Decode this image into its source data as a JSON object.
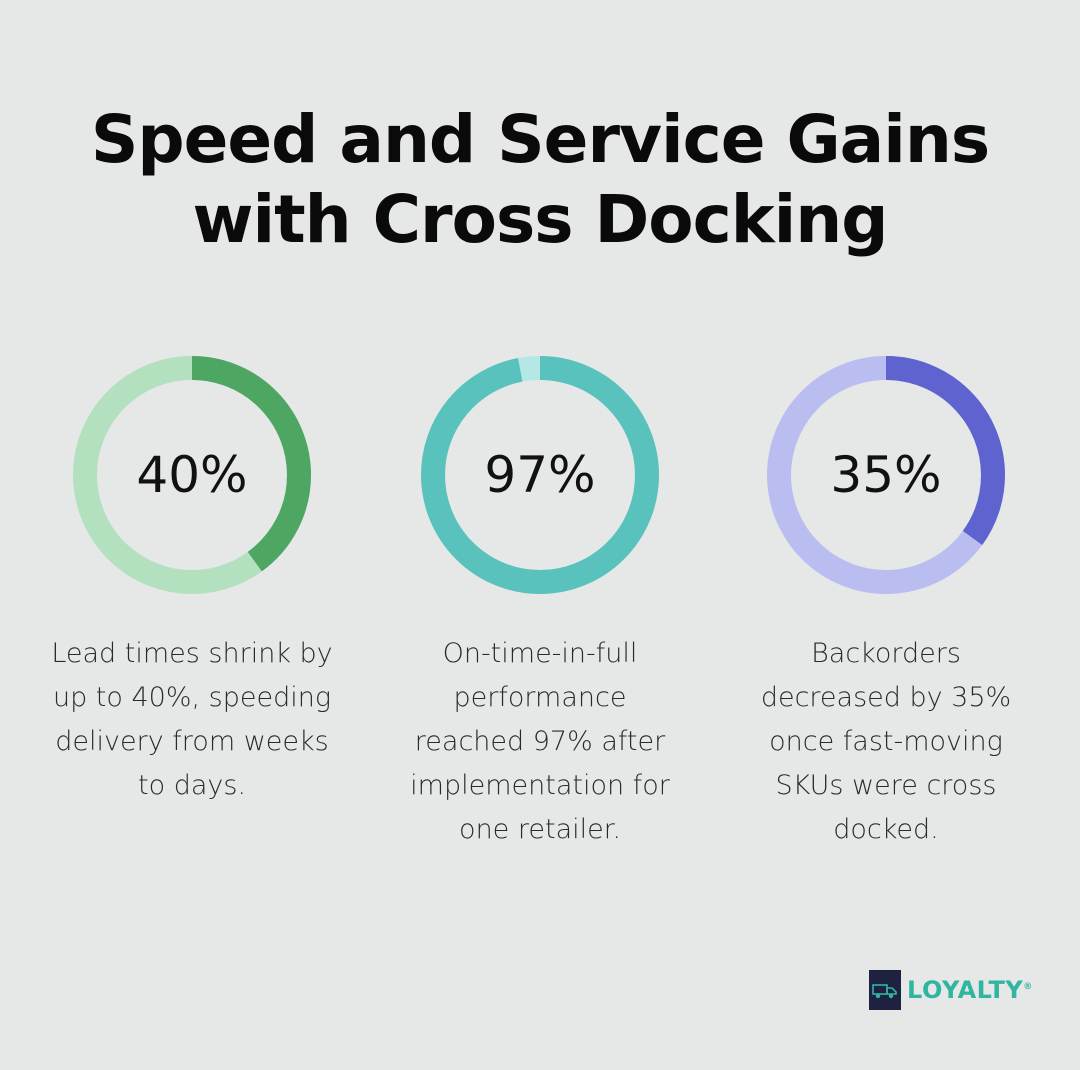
{
  "title": {
    "line1": "Speed and Service Gains",
    "line2": "with Cross Docking"
  },
  "chart_data": [
    {
      "type": "donut",
      "value": 40,
      "label": "40%",
      "description": "Lead times shrink by up to 40%, speeding delivery from weeks to days.",
      "desc_lines": [
        "Lead times shrink by",
        "up to 40%, speeding",
        "delivery from weeks",
        "to days."
      ],
      "colors": {
        "fill": "#4da662",
        "track": "#b3e1c0"
      }
    },
    {
      "type": "donut",
      "value": 97,
      "label": "97%",
      "description": "On-time-in-full performance reached 97% after implementation for one retailer.",
      "desc_lines": [
        "On-time-in-full",
        "performance",
        "reached 97% after",
        "implementation for",
        "one retailer."
      ],
      "colors": {
        "fill": "#5ac2bd",
        "track": "#b5e8e4"
      }
    },
    {
      "type": "donut",
      "value": 35,
      "label": "35%",
      "description": "Backorders decreased by 35% once fast-moving SKUs were cross docked.",
      "desc_lines": [
        "Backorders",
        "decreased by 35%",
        "once fast-moving",
        "SKUs were cross",
        "docked."
      ],
      "colors": {
        "fill": "#5e63cf",
        "track": "#babdf0"
      }
    }
  ],
  "logo": {
    "text": "LOYALTY",
    "reg": "®",
    "icon": "truck-icon"
  }
}
